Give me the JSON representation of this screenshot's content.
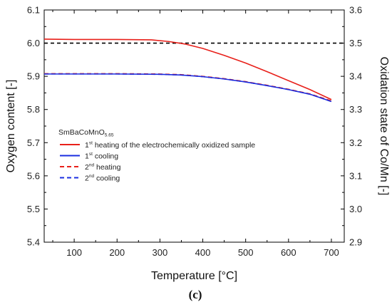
{
  "chart_data": {
    "type": "line",
    "xlabel": "Temperature [°C]",
    "ylabel_left": "Oxygen content [-]",
    "ylabel_right": "Oxidation state of Co/Mn [-]",
    "xlim": [
      30,
      730
    ],
    "ylim_left": [
      5.4,
      6.1
    ],
    "ylim_right": [
      2.9,
      3.6
    ],
    "x_ticks": [
      100,
      200,
      300,
      400,
      500,
      600,
      700
    ],
    "y_ticks_left": [
      5.4,
      5.5,
      5.6,
      5.7,
      5.8,
      5.9,
      6.0,
      6.1
    ],
    "y_ticks_right": [
      2.9,
      3.0,
      3.1,
      3.2,
      3.3,
      3.4,
      3.5,
      3.6
    ],
    "reference_line": {
      "y": 6.0,
      "style": "dashed",
      "color": "#000000"
    },
    "legend": {
      "title_main": "SmBaCoMnO",
      "title_sub": "5.65",
      "placement": "center-left"
    },
    "panel_label": "(c)",
    "series": [
      {
        "name_num": "1",
        "name_sup": "st",
        "name_rest": " heating of the electrochemically oxidized sample",
        "color": "#e8201a",
        "dash": "solid",
        "x": [
          30,
          100,
          200,
          280,
          320,
          360,
          400,
          450,
          500,
          550,
          600,
          650,
          700
        ],
        "y": [
          6.012,
          6.011,
          6.011,
          6.01,
          6.005,
          5.997,
          5.984,
          5.963,
          5.94,
          5.914,
          5.887,
          5.86,
          5.83
        ]
      },
      {
        "name_num": "1",
        "name_sup": "st",
        "name_rest": " cooling",
        "color": "#1a2de0",
        "dash": "solid",
        "x": [
          30,
          100,
          200,
          300,
          350,
          400,
          450,
          500,
          550,
          600,
          650,
          700
        ],
        "y": [
          5.907,
          5.907,
          5.907,
          5.906,
          5.904,
          5.899,
          5.892,
          5.883,
          5.872,
          5.86,
          5.846,
          5.824
        ]
      },
      {
        "name_num": "2",
        "name_sup": "nd",
        "name_rest": " heating",
        "color": "#e8201a",
        "dash": "dashed",
        "x": [
          30,
          100,
          200,
          300,
          350,
          400,
          450,
          500,
          550,
          600,
          650,
          700
        ],
        "y": [
          5.908,
          5.908,
          5.908,
          5.907,
          5.905,
          5.9,
          5.893,
          5.884,
          5.873,
          5.861,
          5.847,
          5.826
        ]
      },
      {
        "name_num": "2",
        "name_sup": "nd",
        "name_rest": " cooling",
        "color": "#1a2de0",
        "dash": "dashed",
        "x": [
          30,
          100,
          200,
          300,
          350,
          400,
          450,
          500,
          550,
          600,
          650,
          700
        ],
        "y": [
          5.907,
          5.907,
          5.907,
          5.906,
          5.904,
          5.899,
          5.892,
          5.883,
          5.872,
          5.86,
          5.846,
          5.824
        ]
      }
    ]
  }
}
